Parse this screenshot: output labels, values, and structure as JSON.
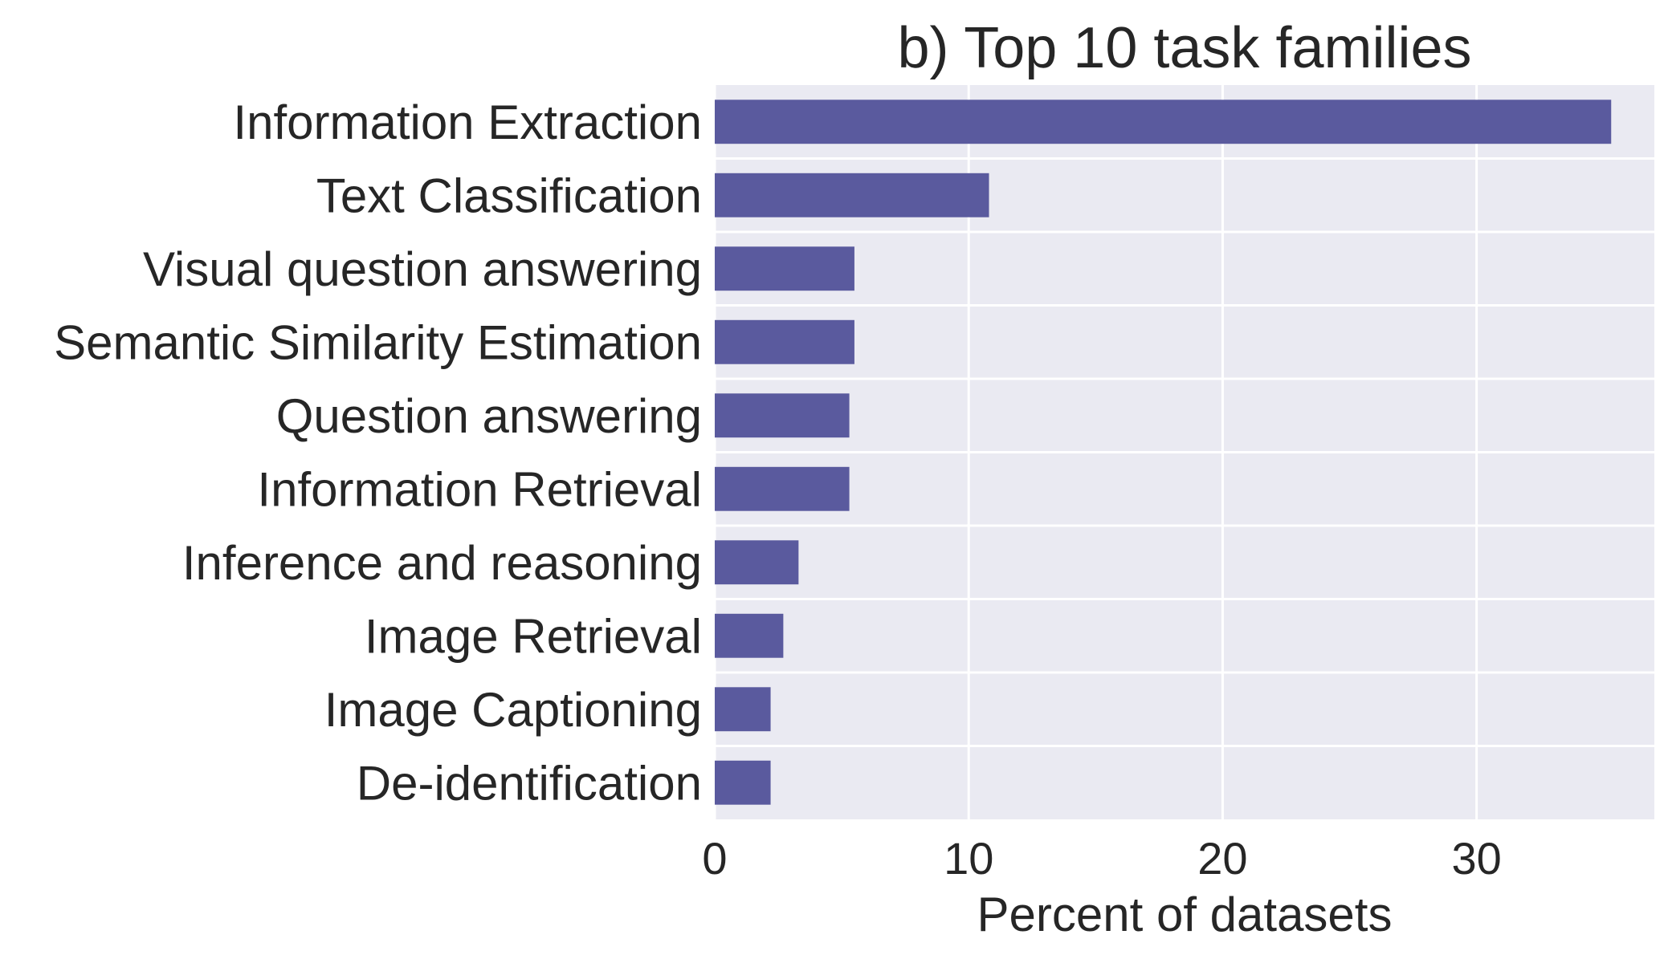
{
  "chart_data": {
    "type": "bar",
    "orientation": "horizontal",
    "title": "b) Top 10 task families",
    "xlabel": "Percent of datasets",
    "ylabel": "",
    "categories": [
      "Information Extraction",
      "Text Classification",
      "Visual question answering",
      "Semantic Similarity Estimation",
      "Question answering",
      "Information Retrieval",
      "Inference and reasoning",
      "Image Retrieval",
      "Image Captioning",
      "De-identification"
    ],
    "values": [
      35.3,
      10.8,
      5.5,
      5.5,
      5.3,
      5.3,
      3.3,
      2.7,
      2.2,
      2.2
    ],
    "xlim": [
      0,
      37
    ],
    "xticks": [
      0,
      10,
      20,
      30
    ],
    "grid": true,
    "colors": {
      "bar": "#5a5a9e",
      "background": "#eaeaf2",
      "grid": "#ffffff",
      "text": "#262626"
    }
  }
}
